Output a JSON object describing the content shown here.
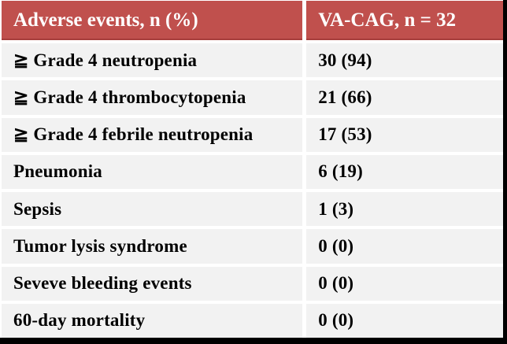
{
  "table": {
    "header": {
      "col1": "Adverse events, n (%)",
      "col2": "VA-CAG, n = 32"
    },
    "rows": [
      {
        "label": "≧ Grade 4 neutropenia",
        "value": "30 (94)"
      },
      {
        "label": "≧ Grade 4 thrombocytopenia",
        "value": "21 (66)"
      },
      {
        "label": "≧ Grade 4 febrile neutropenia",
        "value": "17 (53)"
      },
      {
        "label": "Pneumonia",
        "value": "6 (19)"
      },
      {
        "label": "Sepsis",
        "value": "1 (3)"
      },
      {
        "label": "Tumor lysis syndrome",
        "value": "0 (0)"
      },
      {
        "label": "Seveve bleeding events",
        "value": "0 (0)"
      },
      {
        "label": "60-day mortality",
        "value": "0 (0)"
      }
    ],
    "colors": {
      "header_bg": "#c0504d",
      "header_text": "#ffffff",
      "row_bg": "#f2f2f2",
      "row_text": "#000000",
      "divider": "#ffffff",
      "frame": "#000000"
    }
  },
  "chart_data": {
    "type": "table",
    "title": "Adverse events in VA-CAG cohort",
    "columns": [
      "Adverse events, n (%)",
      "VA-CAG, n = 32"
    ],
    "cohort_n": 32,
    "rows": [
      {
        "event": "≧ Grade 4 neutropenia",
        "n": 30,
        "percent": 94
      },
      {
        "event": "≧ Grade 4 thrombocytopenia",
        "n": 21,
        "percent": 66
      },
      {
        "event": "≧ Grade 4 febrile neutropenia",
        "n": 17,
        "percent": 53
      },
      {
        "event": "Pneumonia",
        "n": 6,
        "percent": 19
      },
      {
        "event": "Sepsis",
        "n": 1,
        "percent": 3
      },
      {
        "event": "Tumor lysis syndrome",
        "n": 0,
        "percent": 0
      },
      {
        "event": "Seveve bleeding events",
        "n": 0,
        "percent": 0
      },
      {
        "event": "60-day mortality",
        "n": 0,
        "percent": 0
      }
    ],
    "layout": {
      "header_bg": "#c0504d",
      "zebra": false,
      "grid": "white-gaps"
    }
  }
}
